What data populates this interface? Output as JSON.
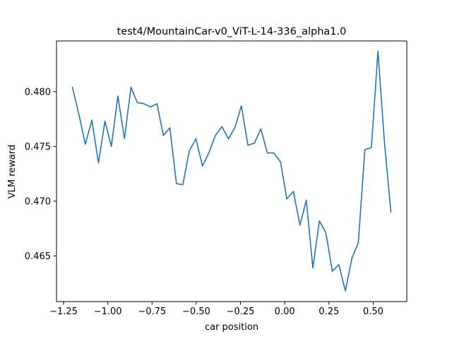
{
  "chart_data": {
    "type": "line",
    "title": "test4/MountainCar-v0_ViT-L-14-336_alpha1.0",
    "xlabel": "car position",
    "ylabel": "VLM reward",
    "xlim": [
      -1.29,
      0.69
    ],
    "ylim": [
      0.46083,
      0.48463
    ],
    "xticks": [
      -1.25,
      -1.0,
      -0.75,
      -0.5,
      -0.25,
      0.0,
      0.25,
      0.5
    ],
    "xtick_labels": [
      "−1.25",
      "−1.00",
      "−0.75",
      "−0.50",
      "−0.25",
      "0.00",
      "0.25",
      "0.50"
    ],
    "yticks": [
      0.465,
      0.47,
      0.475,
      0.48
    ],
    "ytick_labels": [
      "0.465",
      "0.470",
      "0.475",
      "0.480"
    ],
    "grid": false,
    "series": [
      {
        "color": "#1f77b4",
        "x": [
          -1.2,
          -1.163,
          -1.127,
          -1.09,
          -1.053,
          -1.016,
          -0.98,
          -0.943,
          -0.906,
          -0.869,
          -0.833,
          -0.796,
          -0.759,
          -0.722,
          -0.686,
          -0.649,
          -0.612,
          -0.576,
          -0.539,
          -0.502,
          -0.465,
          -0.429,
          -0.392,
          -0.355,
          -0.318,
          -0.282,
          -0.245,
          -0.208,
          -0.171,
          -0.135,
          -0.098,
          -0.061,
          -0.024,
          0.012,
          0.049,
          0.086,
          0.122,
          0.159,
          0.196,
          0.233,
          0.269,
          0.306,
          0.343,
          0.38,
          0.416,
          0.453,
          0.49,
          0.527,
          0.563,
          0.6
        ],
        "y": [
          0.4804,
          0.4779,
          0.4752,
          0.4774,
          0.4735,
          0.4773,
          0.475,
          0.4796,
          0.4757,
          0.4804,
          0.479,
          0.4789,
          0.4786,
          0.4789,
          0.476,
          0.4767,
          0.4716,
          0.4715,
          0.4746,
          0.4757,
          0.4732,
          0.4744,
          0.476,
          0.4768,
          0.4757,
          0.4767,
          0.4787,
          0.4751,
          0.4753,
          0.4766,
          0.4744,
          0.4744,
          0.4736,
          0.4702,
          0.4709,
          0.4678,
          0.4701,
          0.4639,
          0.4682,
          0.4671,
          0.4636,
          0.4642,
          0.4618,
          0.4648,
          0.4662,
          0.4747,
          0.4749,
          0.4837,
          0.4755,
          0.469
        ]
      }
    ]
  }
}
